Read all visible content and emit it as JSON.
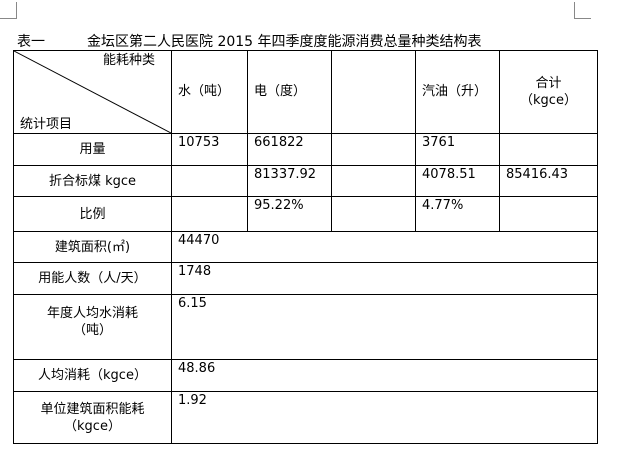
{
  "title": {
    "label": "表一",
    "text": "金坛区第二人民医院 2015 年四季度度能源消费总量种类结构表"
  },
  "header": {
    "corner_top": "能耗种类",
    "corner_bottom": "统计项目",
    "water": "水（吨）",
    "electricity": "电（度）",
    "blank": "",
    "gasoline": "汽油（升）",
    "total_line1": "合计",
    "total_line2": "（kgce）"
  },
  "rows": {
    "usage": {
      "label": "用量",
      "water": "10753",
      "electricity": "661822",
      "blank": "",
      "gasoline": "3761",
      "total": ""
    },
    "coal": {
      "label": "折合标煤 kgce",
      "water": "",
      "electricity": "81337.92",
      "blank": "",
      "gasoline": "4078.51",
      "total": "85416.43"
    },
    "ratio": {
      "label": "比例",
      "water": "",
      "electricity": "95.22%",
      "blank": "",
      "gasoline": "4.77%",
      "total": ""
    },
    "area": {
      "label": "建筑面积(㎡)",
      "value": "44470"
    },
    "people": {
      "label": "用能人数（人/天）",
      "value": "1748"
    },
    "water_per_capita": {
      "label_line1": "年度人均水消耗",
      "label_line2": "（吨）",
      "value": "6.15"
    },
    "energy_per_capita": {
      "label": "人均消耗（kgce）",
      "value": "48.86"
    },
    "energy_per_area": {
      "label_line1": "单位建筑面积能耗",
      "label_line2": "（kgce）",
      "value": "1.92"
    }
  }
}
